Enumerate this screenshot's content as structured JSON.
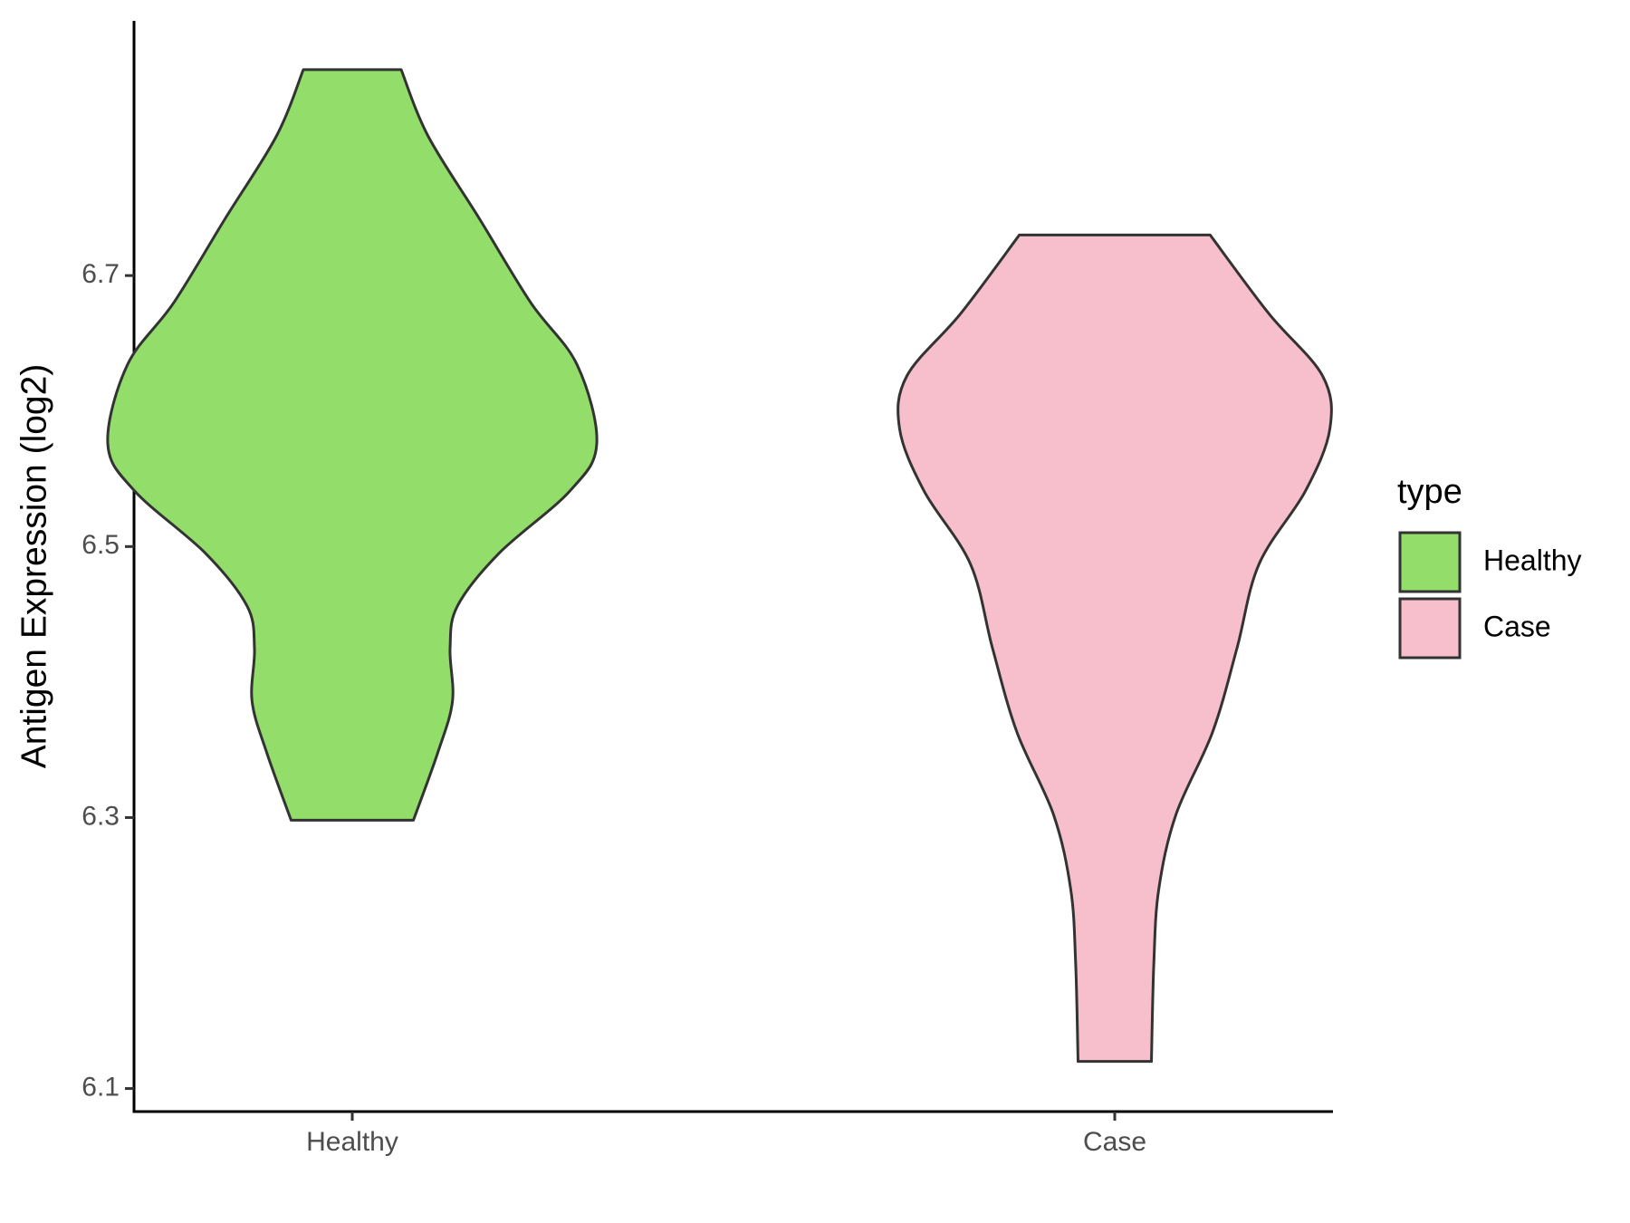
{
  "chart_data": {
    "type": "violin",
    "ylabel": "Antigen Expression (log2)",
    "legend_title": "type",
    "legend": "right",
    "categories": [
      "Healthy",
      "Case"
    ],
    "ylim": [
      6.083,
      6.888
    ],
    "yticks": [
      6.1,
      6.3,
      6.5,
      6.7
    ],
    "series": [
      {
        "name": "Healthy",
        "color": "#93dd6a",
        "y": [
          6.852,
          6.803,
          6.742,
          6.68,
          6.634,
          6.576,
          6.541,
          6.495,
          6.456,
          6.425,
          6.386,
          6.348,
          6.298
        ],
        "density": [
          0.2,
          0.31,
          0.52,
          0.73,
          0.92,
          1.0,
          0.89,
          0.6,
          0.43,
          0.4,
          0.41,
          0.35,
          0.25
        ]
      },
      {
        "name": "Case",
        "color": "#f7bfcb",
        "y": [
          6.73,
          6.672,
          6.626,
          6.587,
          6.541,
          6.487,
          6.425,
          6.363,
          6.302,
          6.247,
          6.193,
          6.12
        ],
        "density": [
          0.39,
          0.63,
          0.85,
          0.88,
          0.78,
          0.59,
          0.5,
          0.4,
          0.25,
          0.18,
          0.16,
          0.15
        ]
      }
    ]
  }
}
